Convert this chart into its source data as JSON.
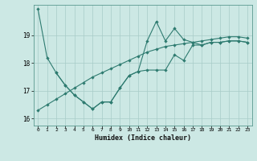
{
  "xlabel": "Humidex (Indice chaleur)",
  "bg_color": "#cce8e4",
  "line_color": "#2e7b70",
  "grid_color": "#a8ccc8",
  "spine_color": "#5a9a90",
  "xlim": [
    -0.5,
    23.5
  ],
  "ylim": [
    15.75,
    20.1
  ],
  "yticks": [
    16,
    17,
    18,
    19
  ],
  "xticks": [
    0,
    1,
    2,
    3,
    4,
    5,
    6,
    7,
    8,
    9,
    10,
    11,
    12,
    13,
    14,
    15,
    16,
    17,
    18,
    19,
    20,
    21,
    22,
    23
  ],
  "line1_x": [
    0,
    1,
    2,
    3,
    4,
    5,
    6,
    7,
    8,
    9,
    10,
    11,
    12,
    13,
    14,
    15,
    16,
    17,
    18,
    19,
    20,
    21,
    22,
    23
  ],
  "line1_y": [
    19.95,
    18.2,
    17.65,
    17.2,
    16.85,
    16.6,
    16.35,
    16.6,
    16.6,
    17.1,
    17.55,
    17.7,
    18.8,
    19.5,
    18.8,
    19.25,
    18.85,
    18.75,
    18.65,
    18.75,
    18.75,
    18.8,
    18.8,
    18.75
  ],
  "line2_x": [
    2,
    3,
    4,
    5,
    6,
    7,
    8,
    9,
    10,
    11,
    12,
    13,
    14,
    15,
    16,
    17,
    18,
    19,
    20,
    21,
    22,
    23
  ],
  "line2_y": [
    17.65,
    17.2,
    16.85,
    16.6,
    16.35,
    16.6,
    16.6,
    17.1,
    17.55,
    17.7,
    17.75,
    17.75,
    17.75,
    18.3,
    18.1,
    18.65,
    18.65,
    18.75,
    18.75,
    18.8,
    18.8,
    18.75
  ],
  "line3_x": [
    0,
    1,
    2,
    3,
    4,
    5,
    6,
    7,
    8,
    9,
    10,
    11,
    12,
    13,
    14,
    15,
    16,
    17,
    18,
    19,
    20,
    21,
    22,
    23
  ],
  "line3_y": [
    16.3,
    16.5,
    16.7,
    16.9,
    17.1,
    17.3,
    17.5,
    17.65,
    17.8,
    17.95,
    18.1,
    18.25,
    18.4,
    18.5,
    18.6,
    18.65,
    18.7,
    18.75,
    18.8,
    18.85,
    18.9,
    18.95,
    18.95,
    18.9
  ]
}
